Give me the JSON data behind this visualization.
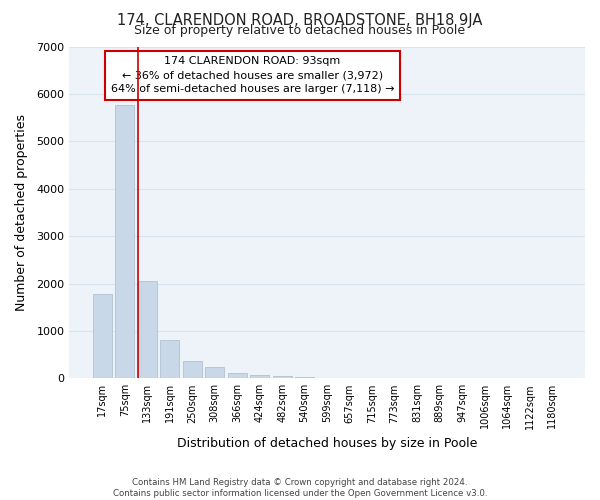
{
  "title": "174, CLARENDON ROAD, BROADSTONE, BH18 9JA",
  "subtitle": "Size of property relative to detached houses in Poole",
  "xlabel": "Distribution of detached houses by size in Poole",
  "ylabel": "Number of detached properties",
  "bar_labels": [
    "17sqm",
    "75sqm",
    "133sqm",
    "191sqm",
    "250sqm",
    "308sqm",
    "366sqm",
    "424sqm",
    "482sqm",
    "540sqm",
    "599sqm",
    "657sqm",
    "715sqm",
    "773sqm",
    "831sqm",
    "889sqm",
    "947sqm",
    "1006sqm",
    "1064sqm",
    "1122sqm",
    "1180sqm"
  ],
  "bar_values": [
    1780,
    5760,
    2060,
    810,
    370,
    240,
    120,
    80,
    40,
    20,
    10,
    0,
    15,
    0,
    0,
    0,
    0,
    0,
    0,
    0,
    0
  ],
  "bar_color": "#c8d8e8",
  "bar_edge_color": "#aabbcc",
  "vline_color": "#cc0000",
  "vline_x": 1.575,
  "ylim": [
    0,
    7000
  ],
  "yticks": [
    0,
    1000,
    2000,
    3000,
    4000,
    5000,
    6000,
    7000
  ],
  "annotation_title": "174 CLARENDON ROAD: 93sqm",
  "annotation_line1": "← 36% of detached houses are smaller (3,972)",
  "annotation_line2": "64% of semi-detached houses are larger (7,118) →",
  "annotation_box_color": "#ffffff",
  "annotation_box_edge_color": "#cc0000",
  "footer1": "Contains HM Land Registry data © Crown copyright and database right 2024.",
  "footer2": "Contains public sector information licensed under the Open Government Licence v3.0.",
  "background_color": "#ffffff",
  "grid_color": "#d8e4ee",
  "plot_bg_color": "#edf3f9"
}
